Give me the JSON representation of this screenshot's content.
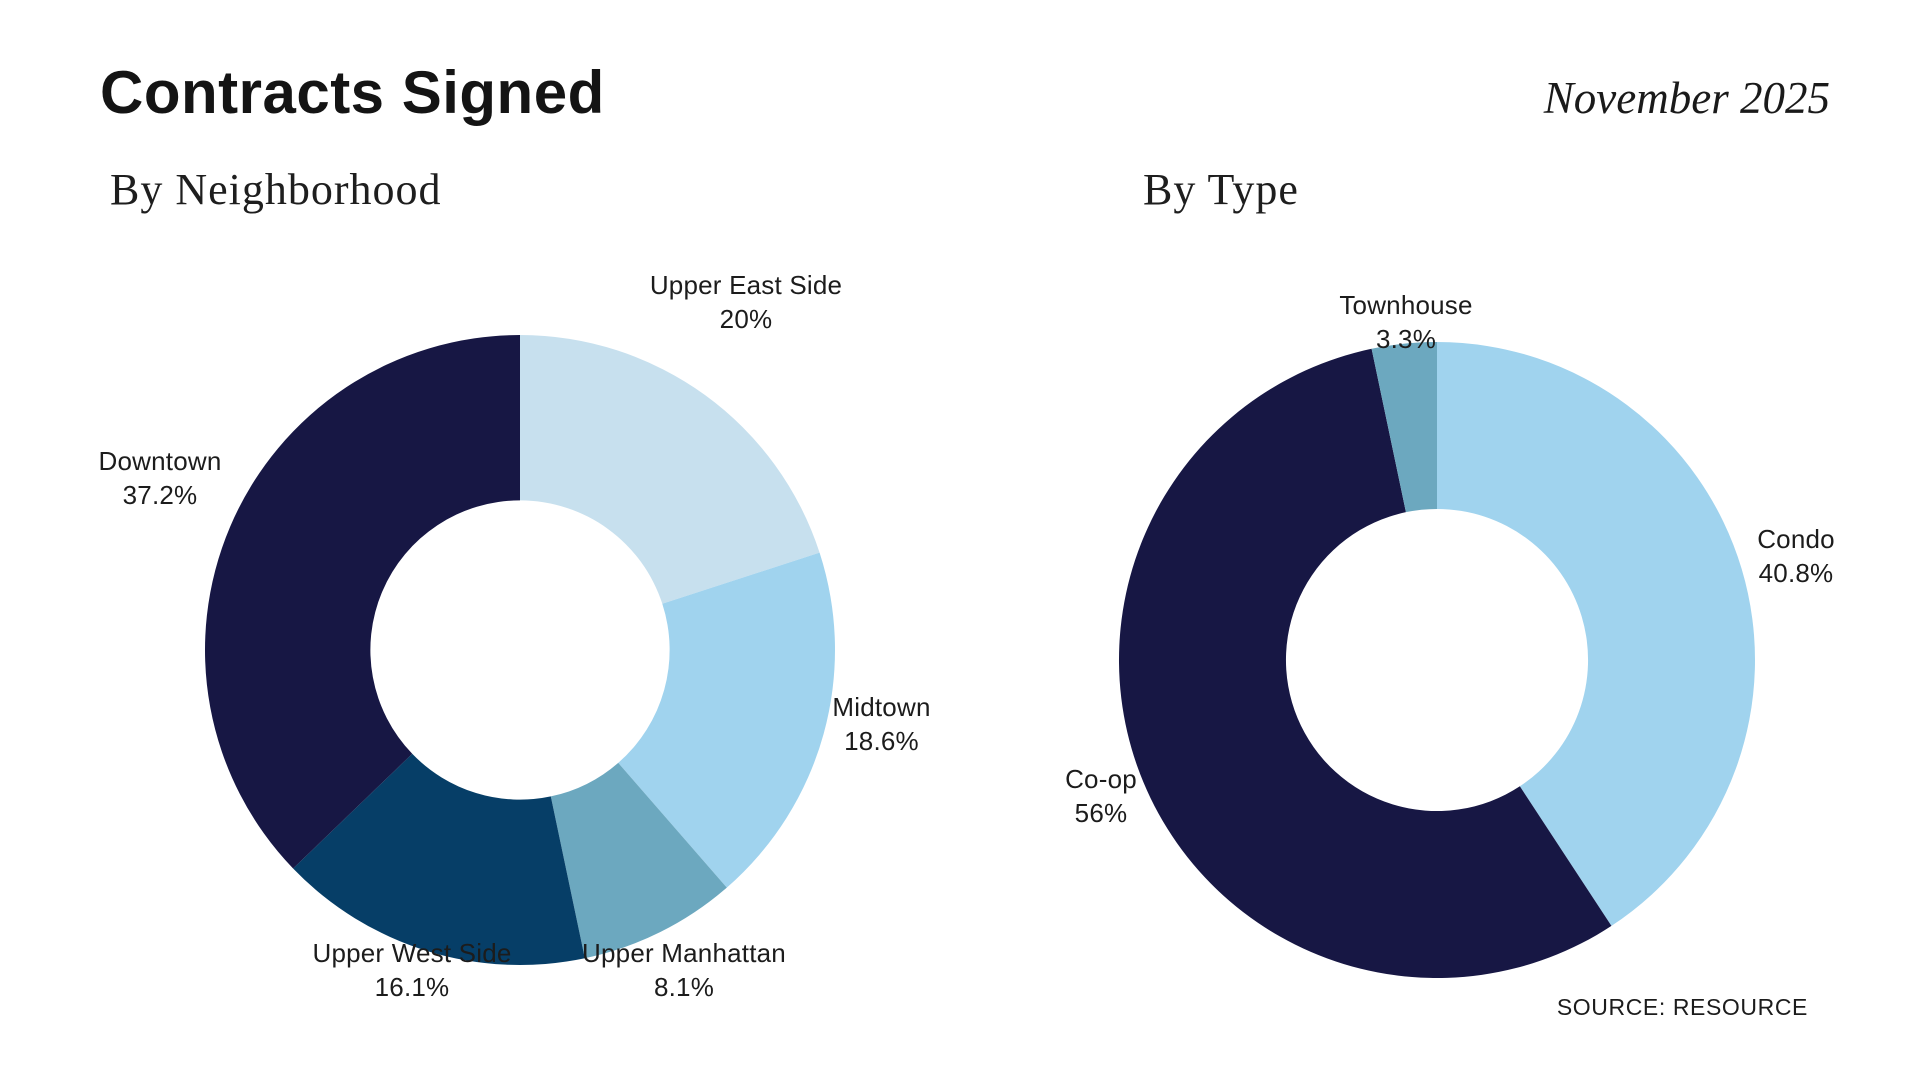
{
  "page": {
    "title": "Contracts Signed",
    "date": "November 2025",
    "source": "SOURCE: RESOURCE"
  },
  "colors": {
    "background": "#ffffff",
    "text": "#1c1c1c",
    "palette": {
      "lightest_blue": "#c7e0ee",
      "sky_blue": "#a0d3ee",
      "steel_blue": "#6ca8bf",
      "dark_blue": "#063e67",
      "navy": "#171744"
    }
  },
  "chart_data": [
    {
      "type": "pie",
      "variant": "donut",
      "title": "By Neighborhood",
      "start_angle_deg": 0,
      "direction": "clockwise",
      "inner_radius_ratio": 0.475,
      "legend_position": "outside-labels",
      "segments": [
        {
          "label": "Upper East Side",
          "value": 20,
          "display": "20%",
          "color": "#c7e0ee"
        },
        {
          "label": "Midtown",
          "value": 18.6,
          "display": "18.6%",
          "color": "#a0d3ee"
        },
        {
          "label": "Upper Manhattan",
          "value": 8.1,
          "display": "8.1%",
          "color": "#6ca8bf"
        },
        {
          "label": "Upper West Side",
          "value": 16.1,
          "display": "16.1%",
          "color": "#063e67"
        },
        {
          "label": "Downtown",
          "value": 37.2,
          "display": "37.2%",
          "color": "#171744"
        }
      ]
    },
    {
      "type": "pie",
      "variant": "donut",
      "title": "By Type",
      "start_angle_deg": 0,
      "direction": "clockwise",
      "inner_radius_ratio": 0.475,
      "legend_position": "outside-labels",
      "segments": [
        {
          "label": "Condo",
          "value": 40.8,
          "display": "40.8%",
          "color": "#a0d3ee"
        },
        {
          "label": "Co-op",
          "value": 56,
          "display": "56%",
          "color": "#171744"
        },
        {
          "label": "Townhouse",
          "value": 3.3,
          "display": "3.3%",
          "color": "#6ca8bf"
        }
      ]
    }
  ]
}
